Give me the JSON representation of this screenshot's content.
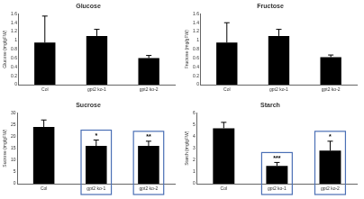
{
  "chart_data": [
    {
      "type": "bar",
      "title": "Glucose",
      "y_label": "Glucose (mg/gFW)",
      "categories": [
        "Col",
        "gpt2 ko-1",
        "gpt2 ko-2"
      ],
      "values": [
        0.95,
        1.1,
        0.6
      ],
      "errors": [
        0.6,
        0.15,
        0.06
      ],
      "significance": [
        null,
        null,
        null
      ],
      "color": "#000000",
      "ylim": [
        0,
        1.6
      ],
      "yticks": [
        0,
        0.2,
        0.4,
        0.6,
        0.8,
        1,
        1.2,
        1.4,
        1.6
      ],
      "grid": false
    },
    {
      "type": "bar",
      "title": "Fructose",
      "y_label": "Fructose (mg/gFW)",
      "categories": [
        "Col",
        "gpt2 ko-1",
        "gpt2 ko-2"
      ],
      "values": [
        0.95,
        1.1,
        0.62
      ],
      "errors": [
        0.45,
        0.15,
        0.05
      ],
      "significance": [
        null,
        null,
        null
      ],
      "color": "#000000",
      "ylim": [
        0,
        1.6
      ],
      "yticks": [
        0,
        0.2,
        0.4,
        0.6,
        0.8,
        1,
        1.2,
        1.4,
        1.6
      ],
      "grid": false
    },
    {
      "type": "bar",
      "title": "Sucrose",
      "y_label": "Sucrose (mg/gFW)",
      "categories": [
        "Col",
        "gpt2 ko-1",
        "gpt2 ko-2"
      ],
      "values": [
        24,
        16,
        16
      ],
      "errors": [
        3,
        2.5,
        2
      ],
      "significance": [
        null,
        "*",
        "**"
      ],
      "color": "#000000",
      "ylim": [
        0,
        30
      ],
      "yticks": [
        0,
        5,
        10,
        15,
        20,
        25,
        30
      ],
      "grid": false
    },
    {
      "type": "bar",
      "title": "Starch",
      "y_label": "Starch (mg/gFW)",
      "categories": [
        "Col",
        "gpt2 ko-1",
        "gpt2 ko-2"
      ],
      "values": [
        4.7,
        1.5,
        2.8
      ],
      "errors": [
        0.5,
        0.3,
        0.8
      ],
      "significance": [
        null,
        "***",
        "*"
      ],
      "color": "#000000",
      "ylim": [
        0,
        6
      ],
      "yticks": [
        0,
        1,
        2,
        3,
        4,
        5,
        6
      ],
      "grid": false
    }
  ]
}
